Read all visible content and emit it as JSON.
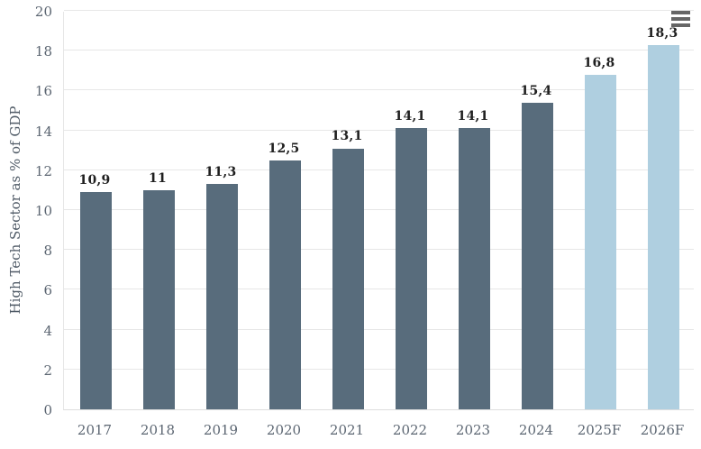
{
  "chart": {
    "context_menu_tooltip": "Chart context menu"
  },
  "chart_data": {
    "type": "bar",
    "title": "",
    "xlabel": "",
    "ylabel": "High Tech Sector as % of GDP",
    "categories": [
      "2017",
      "2018",
      "2019",
      "2020",
      "2021",
      "2022",
      "2023",
      "2024",
      "2025F",
      "2026F"
    ],
    "values": [
      10.9,
      11,
      11.3,
      12.5,
      13.1,
      14.1,
      14.1,
      15.4,
      16.8,
      18.3
    ],
    "value_labels": [
      "10,9",
      "11",
      "11,3",
      "12,5",
      "13,1",
      "14,1",
      "14,1",
      "15,4",
      "16,8",
      "18,3"
    ],
    "ylim": [
      0,
      20
    ],
    "ytick_step": 2,
    "grid": "horizontal",
    "legend": "none",
    "colors": {
      "actual": "#586c7c",
      "forecast": "#afcfe0",
      "gridline": "#e7e7e7",
      "axis_text": "#5c6672",
      "data_label": "#1f1f1f"
    },
    "forecast_categories": [
      "2025F",
      "2026F"
    ]
  }
}
